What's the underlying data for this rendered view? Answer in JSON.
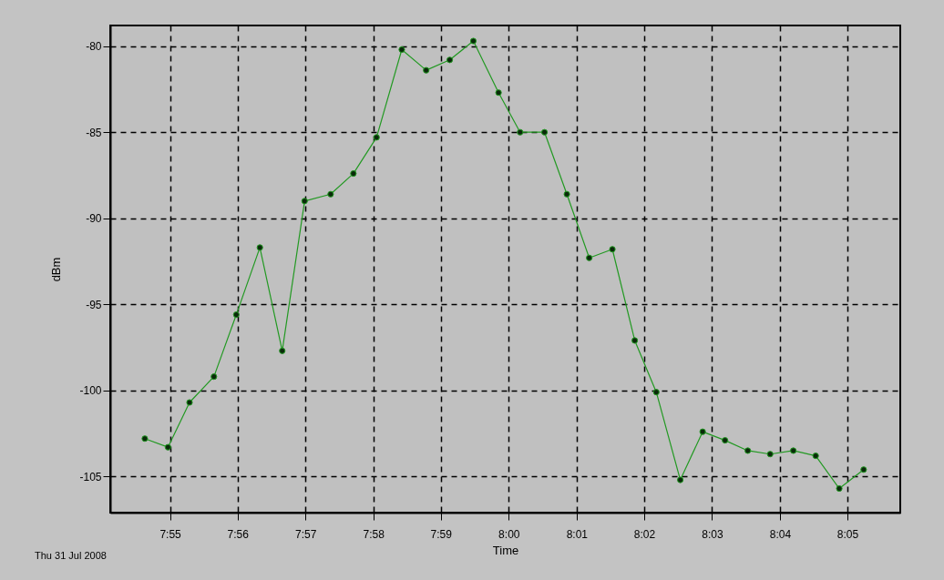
{
  "chart_data": {
    "type": "line",
    "xlabel": "Time",
    "ylabel": "dBm",
    "annotations": [
      "Thu 31 Jul 2008"
    ],
    "x": [
      7.9105,
      7.9162,
      7.9215,
      7.9275,
      7.933,
      7.9388,
      7.9443,
      7.9498,
      7.9562,
      7.9618,
      7.9675,
      7.9737,
      7.9797,
      7.9855,
      7.9913,
      7.9975,
      8.0028,
      8.0088,
      8.0143,
      8.0198,
      8.0255,
      8.031,
      8.0363,
      8.0422,
      8.0477,
      8.0532,
      8.0588,
      8.0643,
      8.07,
      8.0755,
      8.0813,
      8.0873
    ],
    "series": [
      {
        "color": "#229922",
        "values": [
          -102.8,
          -103.3,
          -100.7,
          -99.2,
          -95.6,
          -91.7,
          -97.7,
          -89.0,
          -88.6,
          -87.4,
          -85.3,
          -80.2,
          -81.4,
          -80.8,
          -79.7,
          -82.7,
          -85.0,
          -85.0,
          -88.6,
          -92.3,
          -91.8,
          -97.1,
          -100.1,
          -105.2,
          -102.4,
          -102.9,
          -103.5,
          -103.7,
          -103.5,
          -103.8,
          -105.7,
          -104.6
        ]
      }
    ],
    "xlim": [
      7.902,
      8.0963
    ],
    "ylim": [
      -107.1,
      -78.8
    ],
    "xticks": [
      {
        "value": 7.9167,
        "label": "7:55"
      },
      {
        "value": 7.9333,
        "label": "7:56"
      },
      {
        "value": 7.95,
        "label": "7:57"
      },
      {
        "value": 7.9667,
        "label": "7:58"
      },
      {
        "value": 7.9833,
        "label": "7:59"
      },
      {
        "value": 8,
        "label": "8:00"
      },
      {
        "value": 8.0167,
        "label": "8:01"
      },
      {
        "value": 8.0333,
        "label": "8:02"
      },
      {
        "value": 8.05,
        "label": "8:03"
      },
      {
        "value": 8.0667,
        "label": "8:04"
      },
      {
        "value": 8.0833,
        "label": "8:05"
      }
    ],
    "yticks": [
      -80,
      -85,
      -90,
      -95,
      -100,
      -105
    ],
    "grid": true,
    "marker": "circle",
    "line_style": "solid"
  }
}
